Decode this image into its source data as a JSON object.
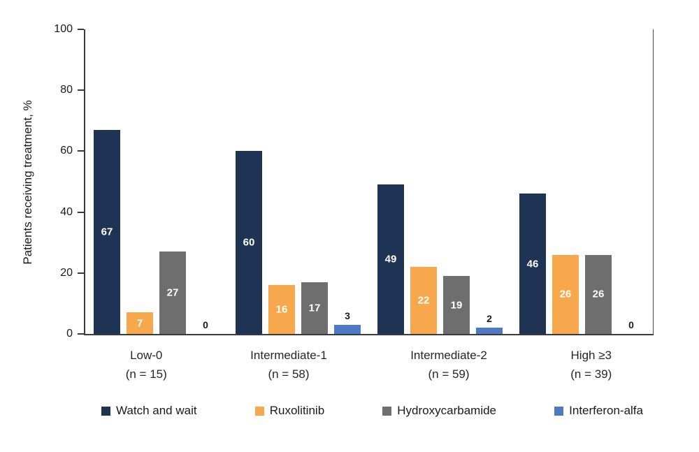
{
  "chart_data": {
    "type": "bar",
    "title": "",
    "xlabel": "",
    "ylabel": "Patients receiving treatment, %",
    "ylim": [
      0,
      100
    ],
    "yticks": [
      0,
      20,
      40,
      60,
      80,
      100
    ],
    "grid": false,
    "legend_position": "bottom",
    "categories": [
      {
        "label": "Low-0",
        "n_label": "(n = 15)"
      },
      {
        "label": "Intermediate-1",
        "n_label": "(n = 58)"
      },
      {
        "label": "Intermediate-2",
        "n_label": "(n = 59)"
      },
      {
        "label": "High ≥3",
        "n_label": "(n = 39)"
      }
    ],
    "series": [
      {
        "name": "Watch and wait",
        "color": "#1f3355",
        "values": [
          67,
          60,
          49,
          46
        ]
      },
      {
        "name": "Ruxolitinib",
        "color": "#f8a84c",
        "values": [
          7,
          16,
          22,
          26
        ]
      },
      {
        "name": "Hydroxycarbamide",
        "color": "#6e6e6e",
        "values": [
          27,
          17,
          19,
          26
        ]
      },
      {
        "name": "Interferon-alfa",
        "color": "#4e79c4",
        "values": [
          0,
          3,
          2,
          0
        ]
      }
    ],
    "label_inside_threshold": 5
  }
}
